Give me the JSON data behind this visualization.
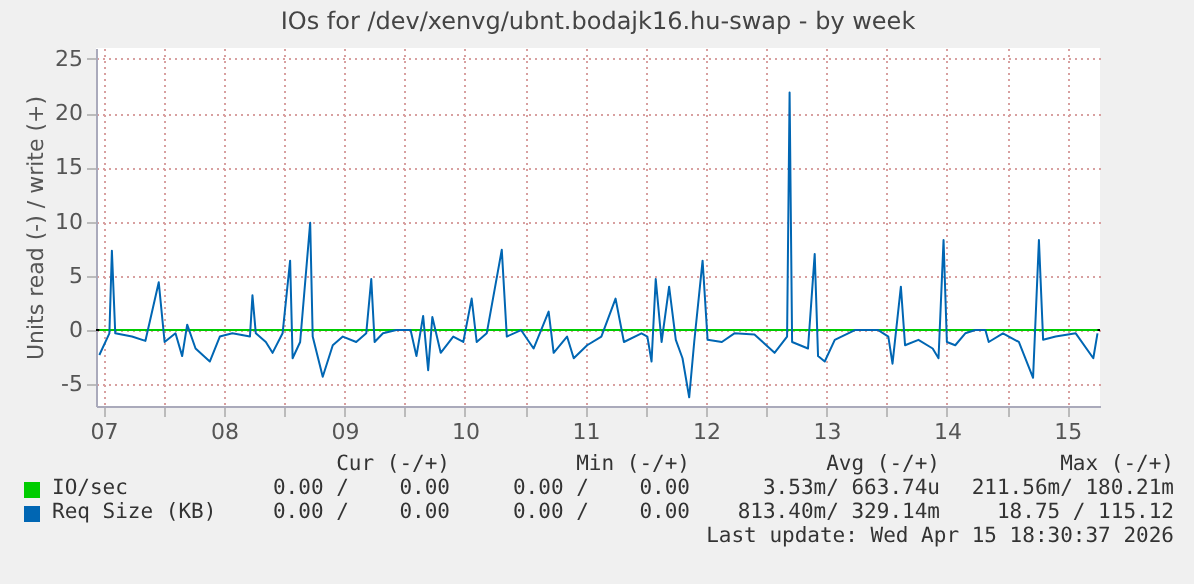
{
  "chart_data": {
    "type": "line",
    "title": "IOs for /dev/xenvg/ubnt.bodajk16.hu-swap - by week",
    "ylabel": "Units read (-) / write (+)",
    "x": [
      "2026-04-07T11:10",
      "2026-04-07T13:10",
      "2026-04-07T13:40",
      "2026-04-07T14:20",
      "2026-04-07T17:40",
      "2026-04-07T20:20",
      "2026-04-07T23:00",
      "2026-04-08T00:10",
      "2026-04-08T02:20",
      "2026-04-08T03:40",
      "2026-04-08T04:40",
      "2026-04-08T06:20",
      "2026-04-08T09:10",
      "2026-04-08T11:10",
      "2026-04-08T13:40",
      "2026-04-08T17:10",
      "2026-04-08T17:40",
      "2026-04-08T18:20",
      "2026-04-08T20:20",
      "2026-04-08T21:40",
      "2026-04-08T23:40",
      "2026-04-09T01:10",
      "2026-04-09T01:40",
      "2026-04-09T03:10",
      "2026-04-09T05:10",
      "2026-04-09T05:40",
      "2026-04-09T07:40",
      "2026-04-09T09:40",
      "2026-04-09T11:40",
      "2026-04-09T14:20",
      "2026-04-09T16:20",
      "2026-04-09T17:20",
      "2026-04-09T18:00",
      "2026-04-09T19:40",
      "2026-04-09T22:20",
      "2026-04-10T01:10",
      "2026-04-10T02:20",
      "2026-04-10T03:40",
      "2026-04-10T04:40",
      "2026-04-10T05:30",
      "2026-04-10T07:10",
      "2026-04-10T09:40",
      "2026-04-10T11:40",
      "2026-04-10T13:20",
      "2026-04-10T14:20",
      "2026-04-10T16:20",
      "2026-04-10T19:20",
      "2026-04-10T20:20",
      "2026-04-10T23:10",
      "2026-04-11T01:40",
      "2026-04-11T04:40",
      "2026-04-11T05:40",
      "2026-04-11T08:20",
      "2026-04-11T09:40",
      "2026-04-11T12:20",
      "2026-04-11T15:10",
      "2026-04-11T18:00",
      "2026-04-11T19:40",
      "2026-04-11T23:10",
      "2026-04-12T00:20",
      "2026-04-12T01:10",
      "2026-04-12T02:00",
      "2026-04-12T03:10",
      "2026-04-12T04:40",
      "2026-04-12T06:00",
      "2026-04-12T07:20",
      "2026-04-12T08:40",
      "2026-04-12T09:40",
      "2026-04-12T11:20",
      "2026-04-12T12:20",
      "2026-04-12T15:10",
      "2026-04-12T17:40",
      "2026-04-12T21:40",
      "2026-04-13T01:40",
      "2026-04-13T04:10",
      "2026-04-13T04:40",
      "2026-04-13T05:10",
      "2026-04-13T08:20",
      "2026-04-13T09:40",
      "2026-04-13T10:20",
      "2026-04-13T11:40",
      "2026-04-13T13:40",
      "2026-04-13T16:20",
      "2026-04-13T17:40",
      "2026-04-13T22:20",
      "2026-04-14T00:20",
      "2026-04-14T01:10",
      "2026-04-14T02:50",
      "2026-04-14T03:40",
      "2026-04-14T06:20",
      "2026-04-14T09:10",
      "2026-04-14T10:20",
      "2026-04-14T11:20",
      "2026-04-14T12:00",
      "2026-04-14T13:40",
      "2026-04-14T15:40",
      "2026-04-14T17:40",
      "2026-04-14T19:40",
      "2026-04-14T20:20",
      "2026-04-14T23:10",
      "2026-04-15T02:20",
      "2026-04-15T05:10",
      "2026-04-15T06:20",
      "2026-04-15T07:10",
      "2026-04-15T09:40",
      "2026-04-15T13:40",
      "2026-04-15T17:10",
      "2026-04-15T18:00"
    ],
    "series": [
      {
        "name": "IO/sec",
        "color": "#00cc00",
        "values": [
          0,
          0,
          0,
          0,
          0,
          0,
          0,
          0,
          0,
          0,
          0,
          0,
          0,
          0,
          0,
          0,
          0,
          0,
          0,
          0,
          0,
          0,
          0,
          0,
          0,
          0,
          0,
          0,
          0,
          0,
          0,
          0,
          0,
          0,
          0,
          0,
          0,
          0,
          0,
          0,
          0,
          0,
          0,
          0,
          0,
          0,
          0,
          0,
          0,
          0,
          0,
          0,
          0,
          0,
          0,
          0,
          0,
          0,
          0,
          0,
          0,
          0,
          0,
          0,
          0,
          0,
          0,
          0,
          0,
          0,
          0,
          0,
          0,
          0,
          0,
          0,
          0,
          0,
          0,
          0,
          0,
          0,
          0,
          0,
          0,
          0,
          0,
          0,
          0,
          0,
          0,
          0,
          0,
          0,
          0,
          0,
          0,
          0,
          0,
          0,
          0,
          0,
          0,
          0,
          0,
          0,
          0,
          0
        ]
      },
      {
        "name": "Req Size (KB)",
        "color": "#0066b3",
        "values": [
          -2.3,
          -0.3,
          7.3,
          -0.3,
          -0.6,
          -1.0,
          4.4,
          -1.1,
          -0.3,
          -2.4,
          0.5,
          -1.7,
          -2.9,
          -0.6,
          -0.3,
          -0.6,
          3.2,
          -0.3,
          -1.1,
          -2.1,
          -0.3,
          6.4,
          -2.6,
          -1.1,
          9.9,
          -0.6,
          -4.3,
          -1.4,
          -0.6,
          -1.1,
          -0.3,
          4.7,
          -1.1,
          -0.3,
          0,
          0,
          -2.4,
          1.3,
          -3.7,
          1.2,
          -2.1,
          -0.6,
          -1.1,
          2.9,
          -1.1,
          -0.3,
          7.4,
          -0.6,
          0,
          -1.7,
          1.7,
          -2.1,
          -0.6,
          -2.6,
          -1.4,
          -0.6,
          2.9,
          -1.1,
          -0.3,
          -0.6,
          -2.9,
          4.7,
          -1.1,
          4.0,
          -0.9,
          -2.6,
          -6.2,
          -1.1,
          6.4,
          -0.9,
          -1.1,
          -0.3,
          -0.4,
          -2.1,
          -0.6,
          21.9,
          -1.1,
          -1.7,
          7.0,
          -2.4,
          -2.9,
          -0.9,
          -0.3,
          0,
          0,
          -0.6,
          -3.1,
          4.0,
          -1.4,
          -0.9,
          -1.7,
          -2.6,
          8.3,
          -1.1,
          -1.4,
          -0.3,
          0,
          0,
          -1.1,
          -0.3,
          -1.1,
          -4.4,
          8.3,
          -0.9,
          -0.6,
          -0.3,
          -2.6,
          -0.3
        ]
      }
    ],
    "xlim": [
      "2026-04-07T10:30",
      "2026-04-15T18:30"
    ],
    "xticks": [
      {
        "value": "2026-04-07T12:00",
        "label": "07"
      },
      {
        "value": "2026-04-08T00:00",
        "label": null
      },
      {
        "value": "2026-04-08T12:00",
        "label": "08"
      },
      {
        "value": "2026-04-09T00:00",
        "label": null
      },
      {
        "value": "2026-04-09T12:00",
        "label": "09"
      },
      {
        "value": "2026-04-10T00:00",
        "label": null
      },
      {
        "value": "2026-04-10T12:00",
        "label": "10"
      },
      {
        "value": "2026-04-11T00:00",
        "label": null
      },
      {
        "value": "2026-04-11T12:00",
        "label": "11"
      },
      {
        "value": "2026-04-12T00:00",
        "label": null
      },
      {
        "value": "2026-04-12T12:00",
        "label": "12"
      },
      {
        "value": "2026-04-13T00:00",
        "label": null
      },
      {
        "value": "2026-04-13T12:00",
        "label": "13"
      },
      {
        "value": "2026-04-14T00:00",
        "label": null
      },
      {
        "value": "2026-04-14T12:00",
        "label": "14"
      },
      {
        "value": "2026-04-15T00:00",
        "label": null
      },
      {
        "value": "2026-04-15T12:00",
        "label": "15"
      }
    ],
    "ylim": [
      -7,
      26
    ],
    "yticks": [
      -5,
      0,
      5,
      10,
      15,
      20,
      25
    ],
    "grid": true,
    "ref_lines": [
      {
        "axis": "y",
        "value": 0,
        "color": "#000000"
      }
    ],
    "legend": "bottom",
    "annotations": [
      "Cur (-/+)",
      "Min (-/+)",
      "Avg (-/+)",
      "Max (-/+)",
      "0.00 /    0.00",
      "0.00 /    0.00",
      "3.53m/ 663.74u",
      "211.56m/ 180.21m",
      "0.00 /    0.00",
      "0.00 /    0.00",
      "813.40m/ 329.14m",
      "18.75 / 115.12",
      "Last update: Wed Apr 15 18:30:37 2026"
    ]
  }
}
